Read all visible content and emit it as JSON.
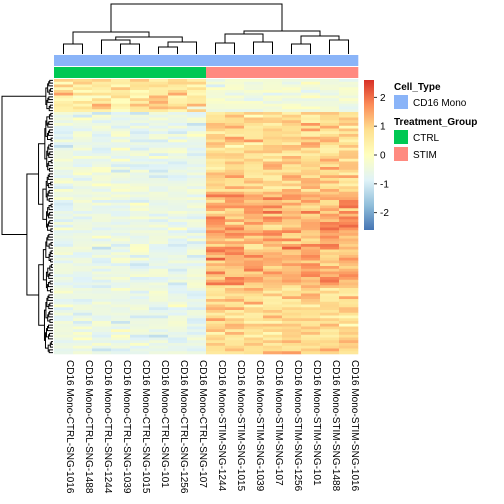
{
  "chart_data": {
    "type": "heatmap",
    "title": "",
    "columns": [
      "CD16 Mono-CTRL-SNG-1016",
      "CD16 Mono-CTRL-SNG-1488",
      "CD16 Mono-CTRL-SNG-1244",
      "CD16 Mono-CTRL-SNG-1039",
      "CD16 Mono-CTRL-SNG-1015",
      "CD16 Mono-CTRL-SNG-101",
      "CD16 Mono-CTRL-SNG-1256",
      "CD16 Mono-CTRL-SNG-107",
      "CD16 Mono-STIM-SNG-1244",
      "CD16 Mono-STIM-SNG-1015",
      "CD16 Mono-STIM-SNG-1039",
      "CD16 Mono-STIM-SNG-107",
      "CD16 Mono-STIM-SNG-1256",
      "CD16 Mono-STIM-SNG-101",
      "CD16 Mono-STIM-SNG-1488",
      "CD16 Mono-STIM-SNG-1016"
    ],
    "column_annotations": {
      "Cell_Type": [
        "CD16 Mono",
        "CD16 Mono",
        "CD16 Mono",
        "CD16 Mono",
        "CD16 Mono",
        "CD16 Mono",
        "CD16 Mono",
        "CD16 Mono",
        "CD16 Mono",
        "CD16 Mono",
        "CD16 Mono",
        "CD16 Mono",
        "CD16 Mono",
        "CD16 Mono",
        "CD16 Mono",
        "CD16 Mono"
      ],
      "Treatment_Group": [
        "CTRL",
        "CTRL",
        "CTRL",
        "CTRL",
        "CTRL",
        "CTRL",
        "CTRL",
        "CTRL",
        "STIM",
        "STIM",
        "STIM",
        "STIM",
        "STIM",
        "STIM",
        "STIM",
        "STIM"
      ]
    },
    "row_count": 100,
    "row_pattern": "upregulated in STIM",
    "value_range": [
      -2.6,
      2.6
    ],
    "color_scale": {
      "ticks": [
        2,
        1,
        0,
        -1,
        -2
      ],
      "colors": [
        "#4575b4",
        "#91bfdb",
        "#e0f3f8",
        "#ffffbf",
        "#fee090",
        "#fc8d59",
        "#d73027"
      ]
    },
    "legend": {
      "placement": "right",
      "groups": [
        {
          "title": "Cell_Type",
          "items": [
            {
              "label": "CD16 Mono",
              "color": "#8ab4f8"
            }
          ]
        },
        {
          "title": "Treatment_Group",
          "items": [
            {
              "label": "CTRL",
              "color": "#00c853"
            },
            {
              "label": "STIM",
              "color": "#ff8a80"
            }
          ]
        }
      ]
    },
    "row_dendrogram": "left",
    "column_dendrogram": "top"
  }
}
